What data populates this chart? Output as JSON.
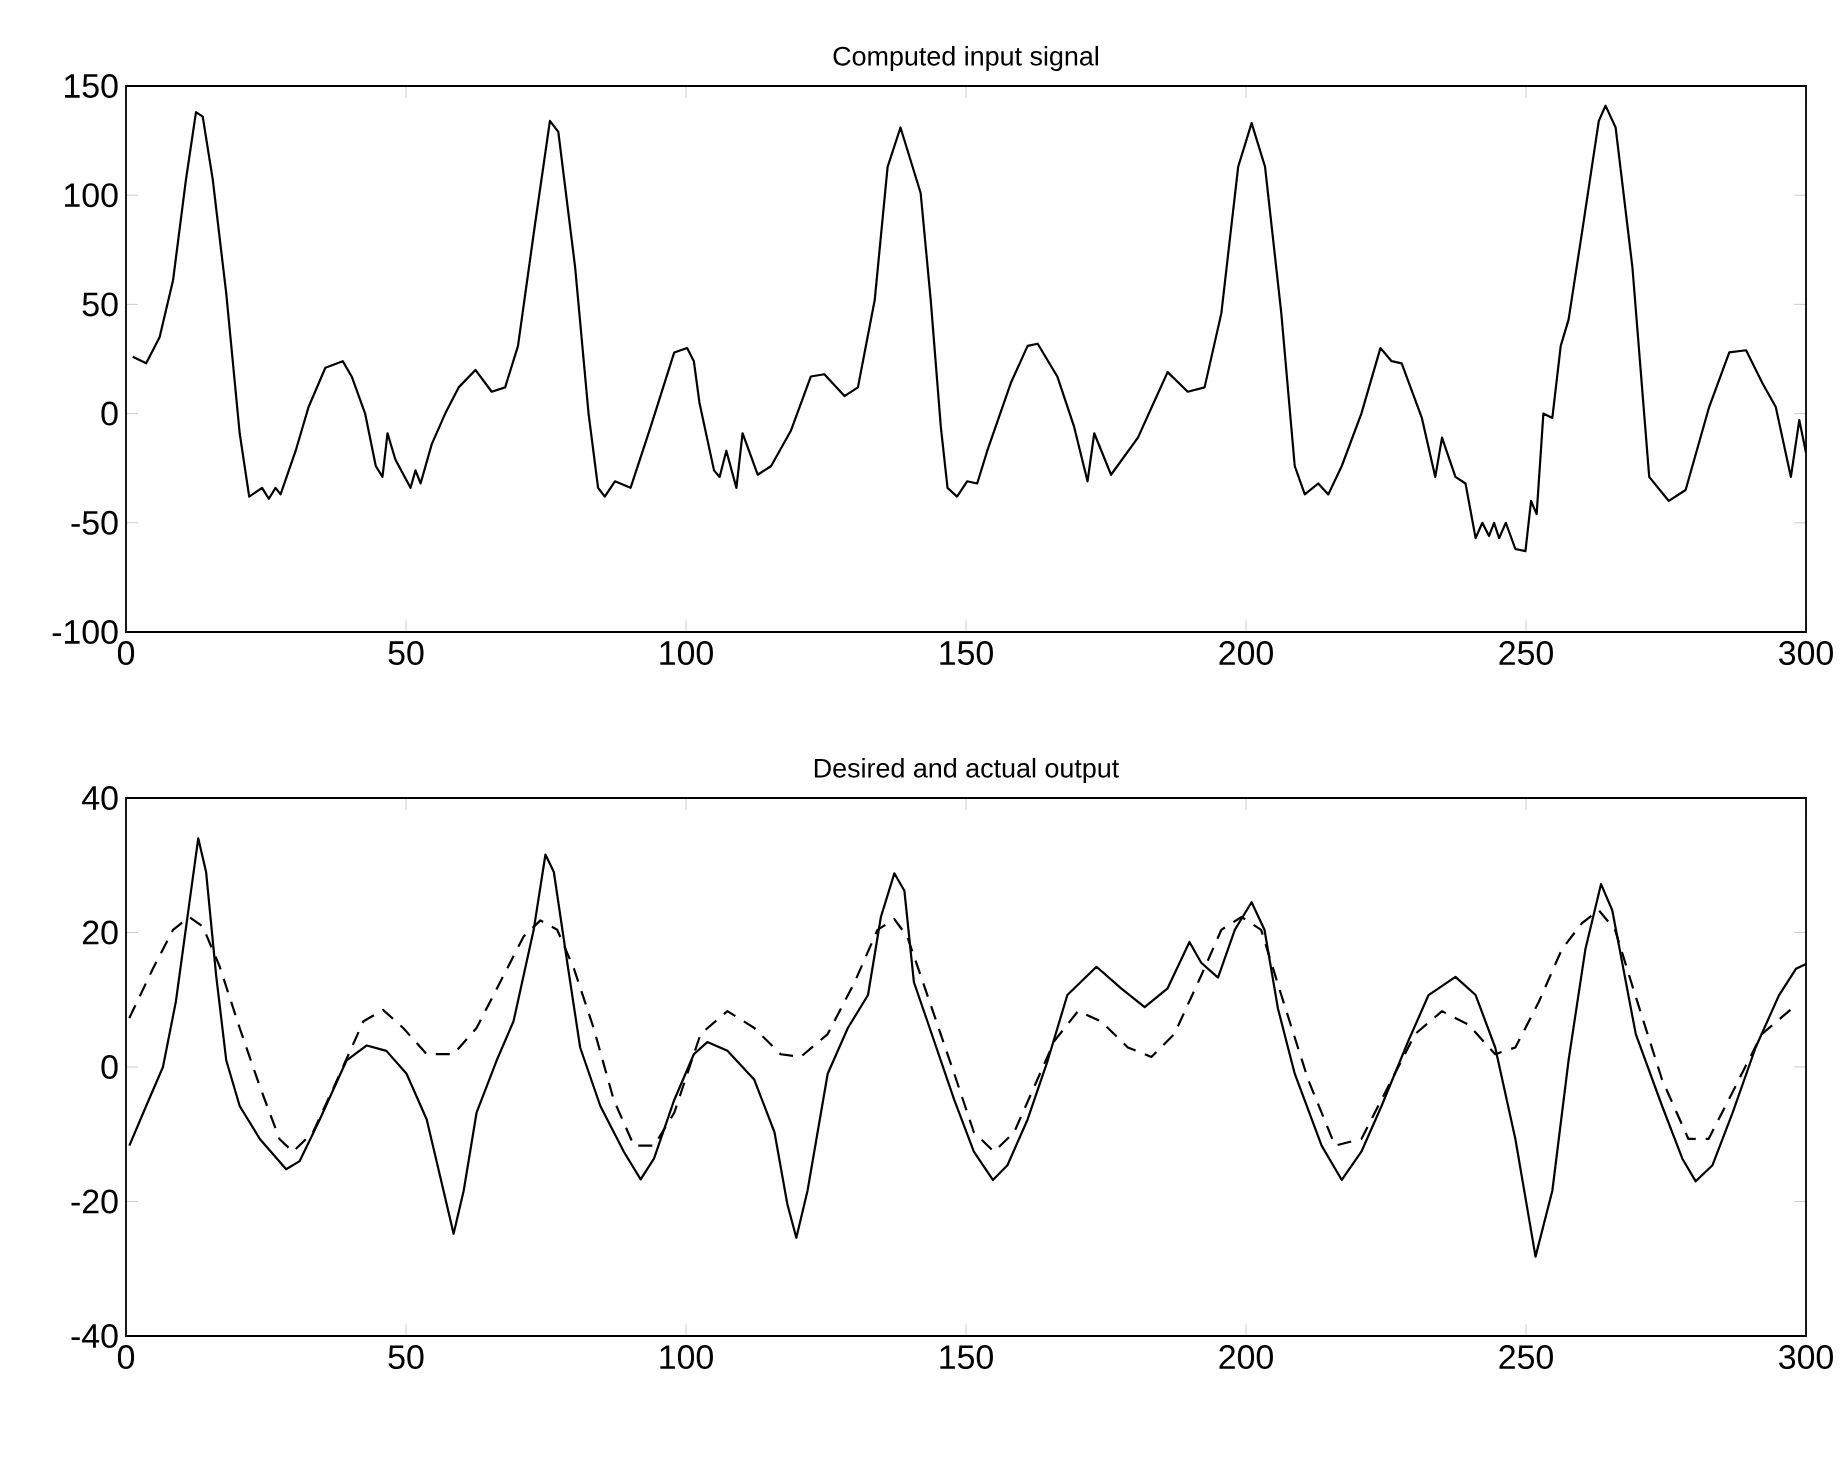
{
  "chart_data": [
    {
      "type": "line",
      "title": "Computed input signal",
      "xlim": [
        0,
        300
      ],
      "ylim": [
        -100,
        150
      ],
      "xticks": [
        0,
        50,
        100,
        150,
        200,
        250,
        300
      ],
      "yticks": [
        -100,
        -50,
        0,
        50,
        100,
        150
      ],
      "series": [
        {
          "color": "#000000",
          "line_style": "solid",
          "x": [
            1.2,
            3.6,
            6,
            8.4,
            10.7,
            12.5,
            13.7,
            15.5,
            17.9,
            20.3,
            22,
            24.3,
            25.5,
            26.7,
            27.6,
            30.3,
            32.6,
            35.6,
            38.7,
            40.3,
            42.7,
            44.6,
            45.8,
            46.7,
            48.1,
            50.8,
            51.7,
            52.6,
            54.6,
            57,
            59.4,
            62.4,
            65.3,
            67.7,
            70,
            73,
            75.7,
            77.2,
            80.2,
            82.6,
            84.3,
            85.5,
            87.3,
            90.1,
            93.7,
            97.9,
            100.2,
            101.4,
            102.4,
            105,
            106,
            107.2,
            109,
            110.1,
            112.8,
            115.2,
            118.7,
            122.3,
            124.7,
            128.3,
            130.7,
            133.7,
            136,
            138.3,
            141.9,
            143.7,
            145.5,
            146.7,
            148.4,
            150.2,
            152,
            153.8,
            158,
            161,
            162.8,
            166.3,
            169.3,
            171.7,
            172.9,
            175.9,
            180.7,
            183.7,
            186,
            189.6,
            192.6,
            195.6,
            198.6,
            201,
            203.4,
            206.3,
            208.7,
            210.5,
            212.9,
            214.7,
            217.1,
            220.6,
            224,
            226,
            227.8,
            231.4,
            233.8,
            235,
            237.4,
            239.2,
            241,
            242.2,
            243.4,
            244.3,
            245.2,
            246.4,
            248.1,
            249.9,
            250.9,
            251.9,
            253.1,
            254.7,
            256.2,
            257.6,
            260,
            263,
            264.2,
            266,
            269,
            272,
            275.5,
            278.5,
            282.7,
            286.3,
            289.3,
            292.2,
            294.6,
            297.3,
            298.8,
            300
          ],
          "values": [
            26,
            23,
            35,
            61,
            107,
            138,
            136,
            107,
            55,
            -9,
            -38,
            -34,
            -39,
            -34,
            -37,
            -17,
            3,
            21,
            24,
            17,
            0,
            -24,
            -29,
            -9,
            -21,
            -34,
            -26,
            -32,
            -14,
            0,
            12,
            20,
            10,
            12,
            31,
            86,
            134,
            129,
            67,
            0,
            -34,
            -38,
            -31,
            -34,
            -6,
            28,
            30,
            24,
            5,
            -26,
            -29,
            -17,
            -34,
            -9,
            -28,
            -24,
            -8,
            17,
            18,
            8,
            12,
            52,
            113,
            131,
            101,
            52,
            -6,
            -34,
            -38,
            -31,
            -32,
            -17,
            14,
            31,
            32,
            17,
            -6,
            -31,
            -9,
            -28,
            -11,
            6,
            19,
            10,
            12,
            46,
            113,
            133,
            113,
            46,
            -24,
            -37,
            -32,
            -37,
            -24,
            0,
            30,
            24,
            23,
            -2,
            -29,
            -11,
            -29,
            -32,
            -57,
            -50,
            -56,
            -50,
            -57,
            -50,
            -62,
            -63,
            -40,
            -46,
            0,
            -2,
            31,
            43,
            83,
            134,
            141,
            131,
            67,
            -29,
            -40,
            -35,
            3,
            28,
            29,
            14,
            3,
            -29,
            -3,
            -18
          ]
        }
      ]
    },
    {
      "type": "line",
      "title": "Desired and actual output",
      "xlim": [
        0,
        300
      ],
      "ylim": [
        -40,
        40
      ],
      "xticks": [
        0,
        50,
        100,
        150,
        200,
        250,
        300
      ],
      "yticks": [
        -40,
        -20,
        0,
        20,
        40
      ],
      "series": [
        {
          "color": "#000000",
          "line_style": "solid",
          "x": [
            0.6,
            3.6,
            6.6,
            8.9,
            11.3,
            12.9,
            14.3,
            16.1,
            17.9,
            20.3,
            23.9,
            28.6,
            31,
            34.6,
            39.4,
            43,
            46.5,
            50.1,
            53.7,
            56.7,
            58.5,
            60.3,
            62.6,
            66.2,
            69.2,
            72.8,
            74.9,
            76.4,
            78.8,
            81.1,
            84.7,
            88.9,
            91.9,
            94.3,
            97.9,
            101.4,
            103.8,
            107.4,
            112.2,
            115.8,
            118.1,
            119.7,
            121.7,
            125.3,
            128.9,
            132.5,
            134.8,
            137.2,
            139,
            140.7,
            143.1,
            147.9,
            151.4,
            154.8,
            157.4,
            161,
            164.6,
            168.1,
            173.3,
            177.7,
            181.9,
            186,
            189.9,
            192,
            195,
            198,
            201,
            203.3,
            205.7,
            208.7,
            213.5,
            217.1,
            220.6,
            224.2,
            229,
            232.6,
            237.4,
            241,
            244.5,
            248.1,
            251.7,
            254.7,
            257.6,
            260.6,
            263.4,
            265.4,
            269.6,
            274.3,
            277.9,
            280.3,
            283.3,
            286.9,
            291,
            295.2,
            298.2,
            300
          ],
          "values": [
            -11.7,
            -5.8,
            0,
            9.7,
            24.3,
            34,
            29,
            13.6,
            1,
            -5.8,
            -10.7,
            -15.2,
            -14,
            -7.8,
            1,
            3.2,
            2.4,
            -1,
            -7.8,
            -18.4,
            -24.8,
            -18.4,
            -6.8,
            1,
            6.8,
            20.4,
            31.6,
            29,
            15.5,
            2.9,
            -5.8,
            -12.6,
            -16.7,
            -13.6,
            -4.9,
            1.9,
            3.7,
            2.4,
            -1.9,
            -9.7,
            -20.4,
            -25.4,
            -18.4,
            -1,
            5.8,
            10.7,
            22.3,
            28.8,
            26.2,
            12.6,
            6.8,
            -4.9,
            -12.6,
            -16.8,
            -14.6,
            -7.8,
            1,
            10.7,
            14.9,
            11.7,
            8.9,
            11.7,
            18.6,
            15.5,
            13.3,
            20.4,
            24.5,
            20.4,
            8.7,
            -1,
            -11.7,
            -16.8,
            -12.6,
            -5.8,
            3.9,
            10.7,
            13.4,
            10.7,
            2.9,
            -10.7,
            -28.2,
            -18.4,
            1,
            17.5,
            27.2,
            23.3,
            4.9,
            -5.8,
            -13.6,
            -17,
            -14.6,
            -6.8,
            2.9,
            10.7,
            14.6,
            15.3
          ]
        },
        {
          "color": "#000000",
          "line_style": "dashed",
          "x": [
            0.6,
            4.8,
            8.4,
            11.3,
            13.7,
            16.7,
            20.3,
            23.9,
            27.4,
            29.8,
            33.4,
            38.2,
            42.4,
            45.9,
            49.5,
            53.7,
            58.5,
            62.6,
            66.8,
            71,
            74,
            77,
            80,
            83.5,
            87.1,
            90.7,
            94.3,
            97.9,
            102.6,
            107.4,
            112.2,
            116.9,
            120.5,
            125.3,
            130.1,
            134.2,
            137.2,
            139.5,
            143.1,
            147.9,
            151.4,
            155,
            158.6,
            162.2,
            165.8,
            170,
            174.1,
            178.9,
            183.1,
            187.2,
            192,
            195.6,
            199.2,
            202.7,
            206.3,
            211.1,
            215.9,
            220.6,
            225.4,
            230.2,
            235,
            239.7,
            244.5,
            248.1,
            252.3,
            256.4,
            260,
            263,
            265.9,
            269.5,
            274.3,
            279,
            282.6,
            287.4,
            292.1,
            297.5
          ],
          "values": [
            7.3,
            14.6,
            20.4,
            22.3,
            20.9,
            15,
            5.8,
            -2.9,
            -10.7,
            -12.6,
            -9.7,
            -1,
            6.8,
            8.5,
            5.8,
            1.9,
            1.9,
            5.8,
            12.6,
            19.4,
            21.8,
            20.4,
            14.6,
            5.8,
            -4.9,
            -11.7,
            -11.7,
            -6.8,
            4.9,
            8.3,
            5.8,
            1.9,
            1.5,
            4.9,
            12.6,
            20.4,
            22,
            19.4,
            10.7,
            -1,
            -9.7,
            -12.6,
            -9.7,
            -2.9,
            3.9,
            8.3,
            6.8,
            2.9,
            1.5,
            4.9,
            13.6,
            20.4,
            22.3,
            20.4,
            10.7,
            -1.9,
            -11.7,
            -10.7,
            -2.9,
            4.9,
            8.3,
            6.3,
            1.9,
            2.9,
            9.7,
            17.5,
            21.4,
            23.3,
            20.4,
            10.7,
            -1.9,
            -10.7,
            -10.7,
            -2.9,
            4.9,
            8.7
          ]
        }
      ]
    }
  ]
}
